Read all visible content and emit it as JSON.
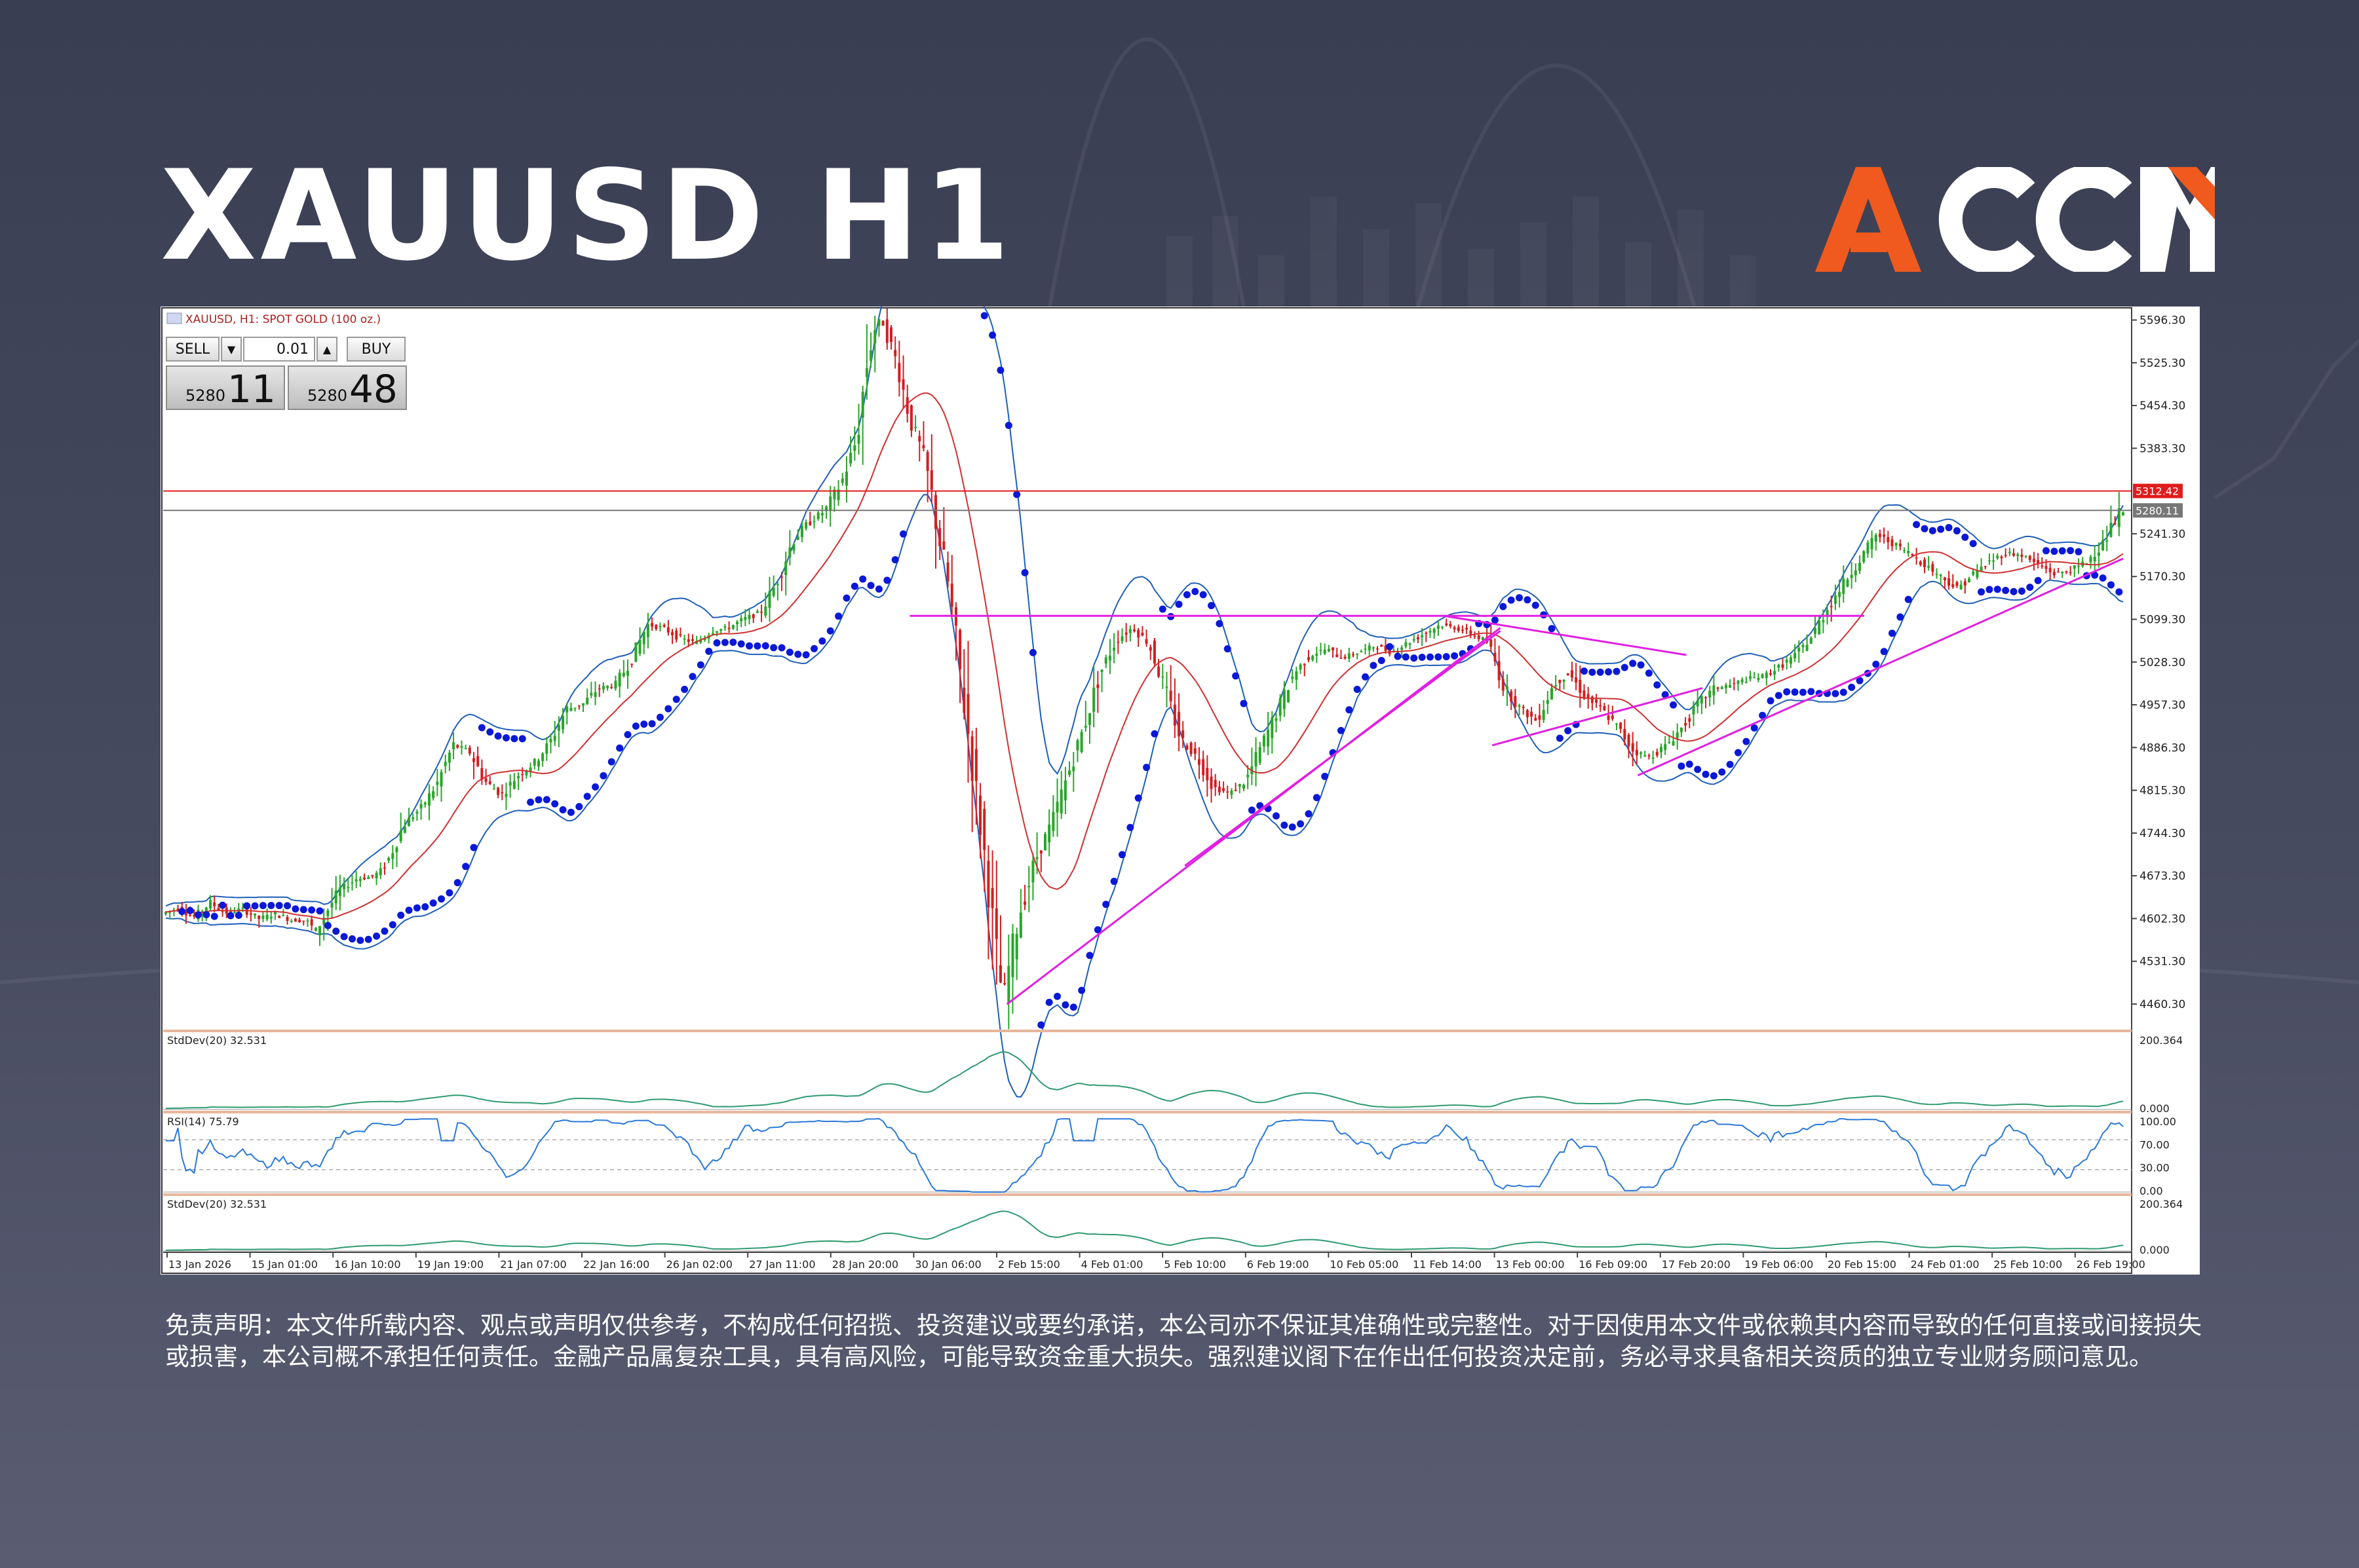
{
  "header": {
    "title": "XAUUSD H1",
    "logo_text": "ACCM",
    "logo_colors": {
      "primary": "#f05a1e",
      "secondary": "#ffffff"
    }
  },
  "chart_data": {
    "type": "line",
    "title": "XAUUSD, H1: SPOT GOLD (100 oz.)",
    "symbol": "XAUUSD",
    "timeframe": "H1",
    "instrument": "SPOT GOLD (100 oz.)",
    "price_axis": {
      "ticks": [
        "5596.30",
        "5525.30",
        "5454.30",
        "5383.30",
        "5241.30",
        "5170.30",
        "5099.30",
        "5028.30",
        "4957.30",
        "4886.30",
        "4815.30",
        "4744.30",
        "4673.30",
        "4602.30",
        "4531.30",
        "4460.30"
      ],
      "range": [
        4420,
        5610
      ]
    },
    "time_axis": [
      "13 Jan 2026",
      "15 Jan 01:00",
      "16 Jan 10:00",
      "19 Jan 19:00",
      "21 Jan 07:00",
      "22 Jan 16:00",
      "26 Jan 02:00",
      "27 Jan 11:00",
      "28 Jan 20:00",
      "30 Jan 06:00",
      "2 Feb 15:00",
      "4 Feb 01:00",
      "5 Feb 10:00",
      "6 Feb 19:00",
      "10 Feb 05:00",
      "11 Feb 14:00",
      "13 Feb 00:00",
      "16 Feb 09:00",
      "17 Feb 20:00",
      "19 Feb 06:00",
      "20 Feb 15:00",
      "24 Feb 01:00",
      "25 Feb 10:00",
      "26 Feb 19:00"
    ],
    "price_path": [
      [
        0,
        4610
      ],
      [
        2,
        4620
      ],
      [
        4,
        4605
      ],
      [
        6,
        4628
      ],
      [
        8,
        4612
      ],
      [
        10,
        4618
      ],
      [
        12,
        4602
      ],
      [
        14,
        4610
      ],
      [
        16,
        4600
      ],
      [
        18,
        4598
      ],
      [
        19,
        4580
      ],
      [
        20,
        4605
      ],
      [
        22,
        4650
      ],
      [
        24,
        4668
      ],
      [
        26,
        4672
      ],
      [
        27,
        4680
      ],
      [
        28,
        4700
      ],
      [
        30,
        4760
      ],
      [
        32,
        4785
      ],
      [
        34,
        4825
      ],
      [
        36,
        4890
      ],
      [
        38,
        4880
      ],
      [
        40,
        4830
      ],
      [
        42,
        4808
      ],
      [
        44,
        4840
      ],
      [
        46,
        4860
      ],
      [
        48,
        4895
      ],
      [
        50,
        4950
      ],
      [
        52,
        4958
      ],
      [
        54,
        4985
      ],
      [
        56,
        4990
      ],
      [
        58,
        5030
      ],
      [
        60,
        5090
      ],
      [
        62,
        5085
      ],
      [
        64,
        5068
      ],
      [
        66,
        5060
      ],
      [
        68,
        5080
      ],
      [
        70,
        5085
      ],
      [
        72,
        5100
      ],
      [
        74,
        5110
      ],
      [
        76,
        5160
      ],
      [
        78,
        5230
      ],
      [
        80,
        5260
      ],
      [
        82,
        5280
      ],
      [
        84,
        5325
      ],
      [
        86,
        5400
      ],
      [
        87,
        5510
      ],
      [
        88,
        5580
      ],
      [
        89,
        5596
      ],
      [
        90,
        5560
      ],
      [
        91,
        5520
      ],
      [
        92,
        5460
      ],
      [
        93,
        5410
      ],
      [
        94,
        5380
      ],
      [
        95,
        5320
      ],
      [
        96,
        5240
      ],
      [
        97,
        5180
      ],
      [
        98,
        5080
      ],
      [
        99,
        4980
      ],
      [
        100,
        4880
      ],
      [
        101,
        4780
      ],
      [
        102,
        4680
      ],
      [
        103,
        4560
      ],
      [
        104,
        4470
      ],
      [
        105,
        4540
      ],
      [
        106,
        4610
      ],
      [
        107,
        4650
      ],
      [
        108,
        4700
      ],
      [
        110,
        4760
      ],
      [
        112,
        4840
      ],
      [
        114,
        4920
      ],
      [
        116,
        5010
      ],
      [
        118,
        5065
      ],
      [
        120,
        5085
      ],
      [
        122,
        5060
      ],
      [
        124,
        4985
      ],
      [
        126,
        4900
      ],
      [
        128,
        4870
      ],
      [
        130,
        4820
      ],
      [
        132,
        4810
      ],
      [
        134,
        4830
      ],
      [
        136,
        4890
      ],
      [
        138,
        4950
      ],
      [
        140,
        5010
      ],
      [
        142,
        5040
      ],
      [
        144,
        5050
      ],
      [
        146,
        5035
      ],
      [
        148,
        5045
      ],
      [
        150,
        5055
      ],
      [
        152,
        5045
      ],
      [
        154,
        5060
      ],
      [
        156,
        5075
      ],
      [
        158,
        5090
      ],
      [
        160,
        5085
      ],
      [
        162,
        5075
      ],
      [
        164,
        5060
      ],
      [
        166,
        4985
      ],
      [
        168,
        4950
      ],
      [
        170,
        4930
      ],
      [
        172,
        4990
      ],
      [
        174,
        5010
      ],
      [
        176,
        4970
      ],
      [
        178,
        4950
      ],
      [
        180,
        4920
      ],
      [
        182,
        4880
      ],
      [
        184,
        4870
      ],
      [
        186,
        4890
      ],
      [
        188,
        4920
      ],
      [
        190,
        4960
      ],
      [
        192,
        4985
      ],
      [
        194,
        4990
      ],
      [
        196,
        5000
      ],
      [
        198,
        5005
      ],
      [
        200,
        5020
      ],
      [
        202,
        5040
      ],
      [
        204,
        5070
      ],
      [
        206,
        5120
      ],
      [
        208,
        5160
      ],
      [
        210,
        5200
      ],
      [
        212,
        5240
      ],
      [
        214,
        5225
      ],
      [
        216,
        5210
      ],
      [
        218,
        5190
      ],
      [
        220,
        5170
      ],
      [
        222,
        5150
      ],
      [
        224,
        5175
      ],
      [
        226,
        5195
      ],
      [
        228,
        5210
      ],
      [
        230,
        5205
      ],
      [
        232,
        5190
      ],
      [
        234,
        5175
      ],
      [
        236,
        5180
      ],
      [
        238,
        5195
      ],
      [
        240,
        5225
      ],
      [
        242,
        5275
      ]
    ],
    "hlines": [
      {
        "price": "5312.42",
        "color": "#e01c1c"
      },
      {
        "price": "5280.11",
        "color": "#777777"
      }
    ],
    "trendlines": [
      {
        "from": [
          104,
          4460
        ],
        "to": [
          165,
          5085
        ]
      },
      {
        "from": [
          126,
          4690
        ],
        "to": [
          165,
          5080
        ]
      },
      {
        "from": [
          92,
          5105
        ],
        "to": [
          210,
          5105
        ]
      },
      {
        "from": [
          158,
          5105
        ],
        "to": [
          188,
          5040
        ]
      },
      {
        "from": [
          164,
          4890
        ],
        "to": [
          190,
          4985
        ]
      },
      {
        "from": [
          182,
          4840
        ],
        "to": [
          242,
          5200
        ]
      }
    ],
    "indicators": [
      {
        "label": "StdDev(20) 32.531",
        "ticks": [
          "200.364",
          "0.000"
        ]
      },
      {
        "label": "RSI(14) 75.79",
        "ticks": [
          "100.00",
          "70.00",
          "30.00",
          "0.00"
        ]
      },
      {
        "label": "StdDev(20) 32.531",
        "ticks": [
          "200.364",
          "0.000"
        ]
      }
    ]
  },
  "trade_panel": {
    "sell_label": "SELL",
    "buy_label": "BUY",
    "lot_value": "0.01",
    "sell_price_small": "5280",
    "sell_price_big": "11",
    "buy_price_small": "5280",
    "buy_price_big": "48"
  },
  "disclaimer": "免责声明：本文件所载内容、观点或声明仅供参考，不构成任何招揽、投资建议或要约承诺，本公司亦不保证其准确性或完整性。对于因使用本文件或依赖其内容而导致的任何直接或间接损失或损害，本公司概不承担任何责任。金融产品属复杂工具，具有高风险，可能导致资金重大损失。强烈建议阁下在作出任何投资决定前，务必寻求具备相关资质的独立专业财务顾问意见。"
}
